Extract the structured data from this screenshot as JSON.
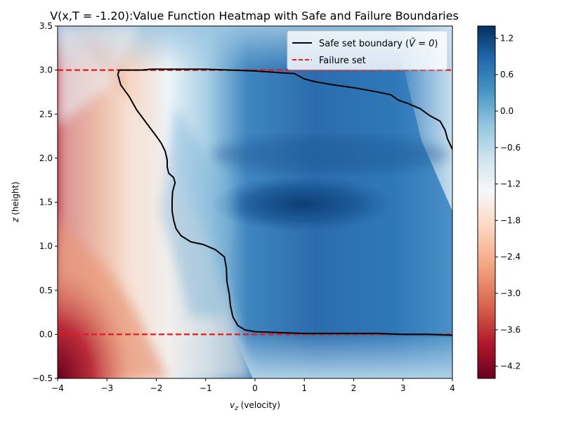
{
  "chart_data": {
    "type": "heatmap",
    "title": "V(x,T = -1.20):Value Function Heatmap with Safe and Failure Boundaries",
    "xlabel_var": "v",
    "xlabel_sub": "z",
    "xlabel_rest": " (velocity)",
    "ylabel_var": "z",
    "ylabel_rest": " (height)",
    "xlim": [
      -4,
      4
    ],
    "ylim": [
      -0.5,
      3.5
    ],
    "xticks": [
      -4,
      -3,
      -2,
      -1,
      0,
      1,
      2,
      3,
      4
    ],
    "xtick_labels": [
      "−4",
      "−3",
      "−2",
      "−1",
      "0",
      "1",
      "2",
      "3",
      "4"
    ],
    "yticks": [
      -0.5,
      0.0,
      0.5,
      1.0,
      1.5,
      2.0,
      2.5,
      3.0,
      3.5
    ],
    "ytick_labels": [
      "−0.5",
      "0.0",
      "0.5",
      "1.0",
      "1.5",
      "2.0",
      "2.5",
      "3.0",
      "3.5"
    ],
    "colormap": "RdBu",
    "colorbar": {
      "range": [
        -4.4,
        1.4
      ],
      "ticks": [
        1.2,
        0.6,
        0.0,
        -0.6,
        -1.2,
        -1.8,
        -2.4,
        -3.0,
        -3.6,
        -4.2
      ],
      "tick_labels": [
        "1.2",
        "0.6",
        "0.0",
        "−0.6",
        "−1.2",
        "−1.8",
        "−2.4",
        "−3.0",
        "−3.6",
        "−4.2"
      ]
    },
    "legend": {
      "placement": "upper-right",
      "entries": [
        {
          "label_main": "Safe set boundary (",
          "label_math": "V̂ = 0",
          "label_end": ")",
          "style": "solid",
          "color": "#000000"
        },
        {
          "label_main": "Failure set",
          "label_math": "",
          "label_end": "",
          "style": "dashed",
          "color": "#e41a1c"
        }
      ]
    },
    "failure_set_levels": [
      3.0,
      0.0
    ],
    "safe_boundary": [
      [
        -2.75,
        3.0
      ],
      [
        -2.3,
        3.0
      ],
      [
        -2.1,
        3.01
      ],
      [
        -1.5,
        3.01
      ],
      [
        -1.0,
        3.01
      ],
      [
        -0.5,
        3.0
      ],
      [
        0.0,
        2.99
      ],
      [
        0.5,
        2.97
      ],
      [
        0.8,
        2.96
      ],
      [
        0.9,
        2.93
      ],
      [
        1.0,
        2.9
      ],
      [
        1.2,
        2.87
      ],
      [
        1.5,
        2.84
      ],
      [
        2.0,
        2.8
      ],
      [
        2.4,
        2.76
      ],
      [
        2.75,
        2.72
      ],
      [
        2.9,
        2.66
      ],
      [
        3.1,
        2.62
      ],
      [
        3.35,
        2.56
      ],
      [
        3.55,
        2.48
      ],
      [
        3.75,
        2.42
      ],
      [
        3.85,
        2.32
      ],
      [
        3.9,
        2.22
      ],
      [
        3.95,
        2.16
      ],
      [
        4.0,
        2.1
      ]
    ],
    "safe_boundary_lower": [
      [
        -2.75,
        3.0
      ],
      [
        -2.78,
        2.95
      ],
      [
        -2.72,
        2.83
      ],
      [
        -2.55,
        2.7
      ],
      [
        -2.4,
        2.55
      ],
      [
        -2.2,
        2.4
      ],
      [
        -2.0,
        2.25
      ],
      [
        -1.9,
        2.17
      ],
      [
        -1.82,
        2.08
      ],
      [
        -1.78,
        1.98
      ],
      [
        -1.78,
        1.9
      ],
      [
        -1.75,
        1.83
      ],
      [
        -1.65,
        1.78
      ],
      [
        -1.62,
        1.72
      ],
      [
        -1.67,
        1.62
      ],
      [
        -1.68,
        1.52
      ],
      [
        -1.68,
        1.4
      ],
      [
        -1.65,
        1.3
      ],
      [
        -1.6,
        1.2
      ],
      [
        -1.5,
        1.12
      ],
      [
        -1.3,
        1.05
      ],
      [
        -1.05,
        1.02
      ],
      [
        -0.8,
        0.96
      ],
      [
        -0.62,
        0.88
      ],
      [
        -0.58,
        0.75
      ],
      [
        -0.57,
        0.6
      ],
      [
        -0.52,
        0.45
      ],
      [
        -0.5,
        0.33
      ],
      [
        -0.45,
        0.2
      ],
      [
        -0.35,
        0.1
      ],
      [
        -0.2,
        0.05
      ],
      [
        0.0,
        0.03
      ],
      [
        0.5,
        0.02
      ],
      [
        1.0,
        0.01
      ],
      [
        2.0,
        0.01
      ],
      [
        2.5,
        0.01
      ],
      [
        3.0,
        0.0
      ],
      [
        3.5,
        0.0
      ],
      [
        4.0,
        -0.01
      ]
    ]
  }
}
